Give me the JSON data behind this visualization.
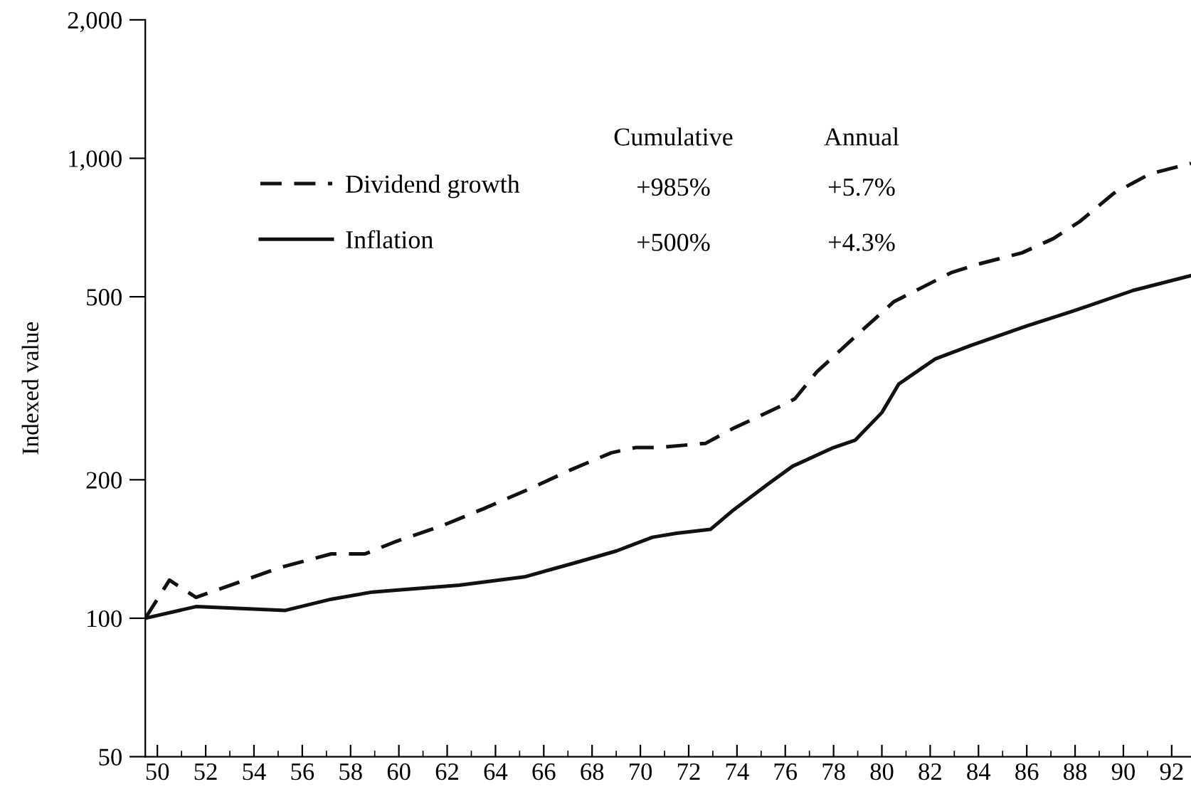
{
  "chart_data": {
    "type": "line",
    "ylabel": "Indexed value",
    "series": [
      {
        "name": "Dividend growth",
        "color": "#111111",
        "line_style": "dashed",
        "x": [
          49.5,
          50.5,
          51.6,
          55.1,
          57.2,
          58.6,
          59.9,
          61.8,
          63.5,
          65.4,
          67.1,
          68.8,
          69.8,
          70.7,
          72.7,
          73.8,
          75.8,
          76.4,
          77.3,
          79.1,
          80.5,
          82.9,
          83.9,
          85.8,
          87.1,
          88.2,
          89.6,
          91.1,
          92.8
        ],
        "values": [
          100,
          121,
          111,
          129,
          138,
          138,
          147,
          159,
          173,
          191,
          210,
          229,
          235,
          235,
          240,
          258,
          289,
          300,
          343,
          419,
          488,
          565,
          587,
          623,
          669,
          729,
          839,
          925,
          975
        ]
      },
      {
        "name": "Inflation",
        "color": "#111111",
        "line_style": "solid",
        "x": [
          49.5,
          51.6,
          55.3,
          57.2,
          58.9,
          59.8,
          62.5,
          65.2,
          67.3,
          69.0,
          70.5,
          71.5,
          72.9,
          73.8,
          75.3,
          76.3,
          78.0,
          78.9,
          80.0,
          80.7,
          82.2,
          83.7,
          86.0,
          87.9,
          90.4,
          92.8
        ],
        "values": [
          100,
          106,
          104,
          110,
          114,
          115,
          118,
          123,
          132,
          140,
          150,
          153,
          156,
          171,
          196,
          214,
          235,
          244,
          280,
          323,
          366,
          392,
          432,
          465,
          516,
          556
        ]
      }
    ],
    "xlim": [
      49.5,
      92.8
    ],
    "xticks": [
      50,
      {
        "value": 51,
        "label": null
      },
      52,
      {
        "value": 53,
        "label": null
      },
      54,
      {
        "value": 55,
        "label": null
      },
      56,
      {
        "value": 57,
        "label": null
      },
      58,
      {
        "value": 59,
        "label": null
      },
      60,
      {
        "value": 61,
        "label": null
      },
      62,
      {
        "value": 63,
        "label": null
      },
      64,
      {
        "value": 65,
        "label": null
      },
      66,
      {
        "value": 67,
        "label": null
      },
      68,
      {
        "value": 69,
        "label": null
      },
      70,
      {
        "value": 71,
        "label": null
      },
      72,
      {
        "value": 73,
        "label": null
      },
      74,
      {
        "value": 75,
        "label": null
      },
      76,
      {
        "value": 77,
        "label": null
      },
      78,
      {
        "value": 79,
        "label": null
      },
      80,
      {
        "value": 81,
        "label": null
      },
      82,
      {
        "value": 83,
        "label": null
      },
      84,
      {
        "value": 85,
        "label": null
      },
      86,
      {
        "value": 87,
        "label": null
      },
      88,
      {
        "value": 89,
        "label": null
      },
      90,
      {
        "value": 91,
        "label": null
      },
      92
    ],
    "ylim": [
      50,
      2000
    ],
    "yticks": [
      50,
      100,
      200,
      500,
      {
        "value": 1000,
        "label": "1,000"
      },
      {
        "value": 2000,
        "label": "2,000"
      }
    ],
    "log": "y",
    "grid": false,
    "legend": "top left",
    "annotations": [
      "Cumulative",
      "Annual",
      "+985%",
      "+5.7%",
      "+500%",
      "+4.3%"
    ]
  }
}
